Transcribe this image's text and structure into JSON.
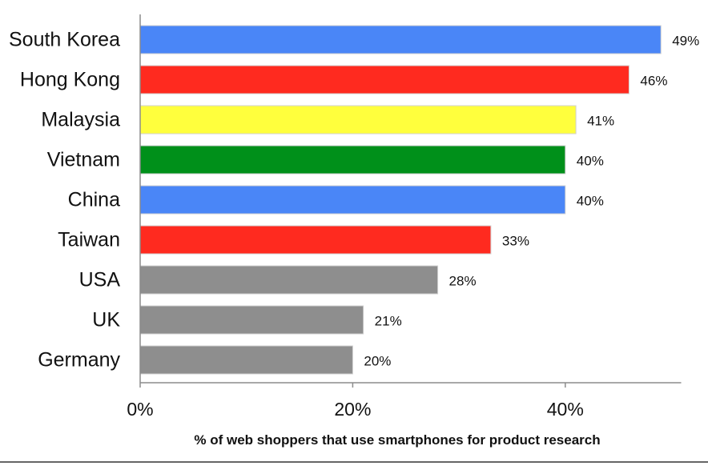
{
  "chart_data": {
    "type": "bar",
    "orientation": "horizontal",
    "categories": [
      "South Korea",
      "Hong Kong",
      "Malaysia",
      "Vietnam",
      "China",
      "Taiwan",
      "USA",
      "UK",
      "Germany"
    ],
    "values": [
      49,
      46,
      41,
      40,
      40,
      33,
      28,
      21,
      20
    ],
    "value_labels": [
      "49%",
      "46%",
      "41%",
      "40%",
      "40%",
      "33%",
      "28%",
      "21%",
      "20%"
    ],
    "colors": [
      "#4a86f7",
      "#ff2a1f",
      "#ffff3d",
      "#00901a",
      "#4a86f7",
      "#ff2a1f",
      "#8e8e8e",
      "#8e8e8e",
      "#8e8e8e"
    ],
    "xlabel": "% of web shoppers that use smartphones for product research",
    "ylabel": "",
    "title": "",
    "xlim": [
      0,
      50
    ],
    "xticks": [
      0,
      20,
      40
    ],
    "xtick_labels": [
      "0%",
      "20%",
      "40%"
    ],
    "grid": false,
    "legend": "none"
  }
}
